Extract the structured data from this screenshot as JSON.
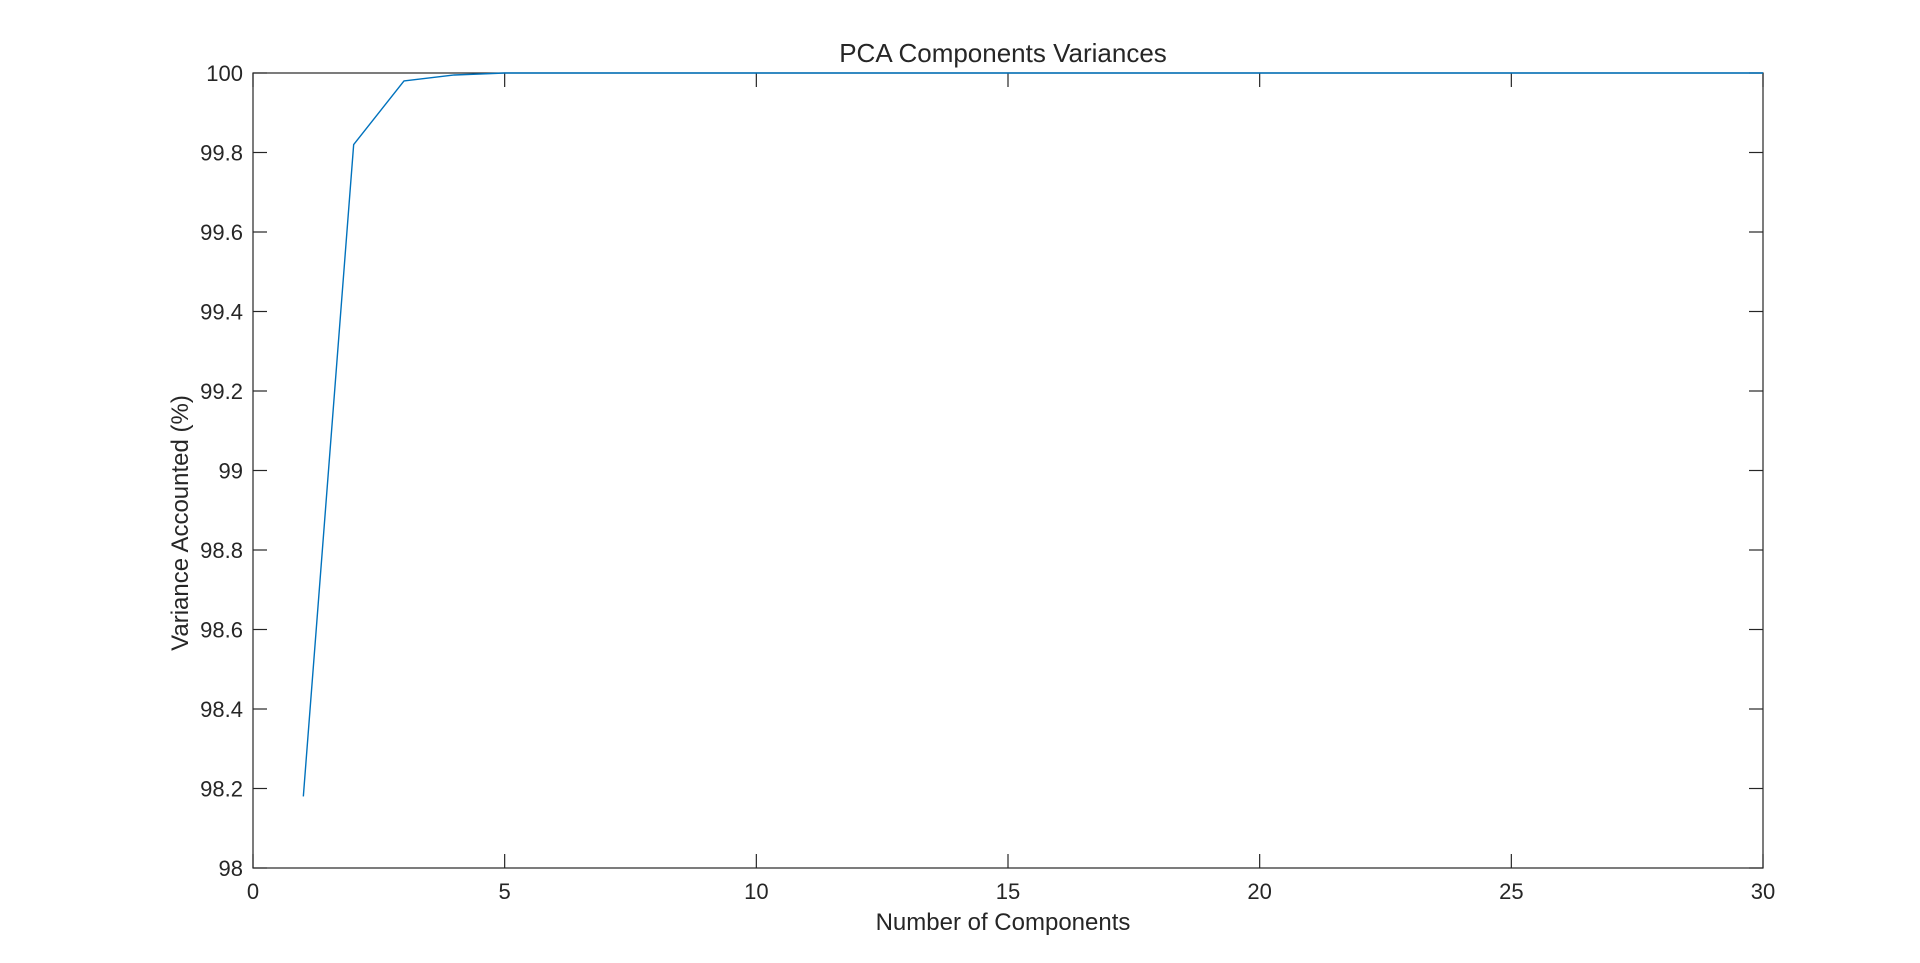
{
  "chart_data": {
    "type": "line",
    "title": "PCA Components Variances",
    "xlabel": "Number of Components",
    "ylabel": "Variance Accounted (%)",
    "xlim": [
      0,
      30
    ],
    "ylim": [
      98,
      100
    ],
    "xticks": [
      "0",
      "5",
      "10",
      "15",
      "20",
      "25",
      "30"
    ],
    "yticks": [
      "98",
      "98.2",
      "98.4",
      "98.6",
      "98.8",
      "99",
      "99.2",
      "99.4",
      "99.6",
      "99.8",
      "100"
    ],
    "grid": false,
    "series": [
      {
        "color": "#0072BD",
        "x": [
          1,
          2,
          3,
          4,
          5,
          6,
          7,
          8,
          9,
          10,
          11,
          12,
          13,
          14,
          15,
          16,
          17,
          18,
          19,
          20,
          21,
          22,
          23,
          24,
          25,
          26,
          27,
          28,
          29,
          30
        ],
        "y": [
          98.18,
          99.82,
          99.98,
          99.995,
          100,
          100,
          100,
          100,
          100,
          100,
          100,
          100,
          100,
          100,
          100,
          100,
          100,
          100,
          100,
          100,
          100,
          100,
          100,
          100,
          100,
          100,
          100,
          100,
          100,
          100
        ]
      }
    ]
  }
}
